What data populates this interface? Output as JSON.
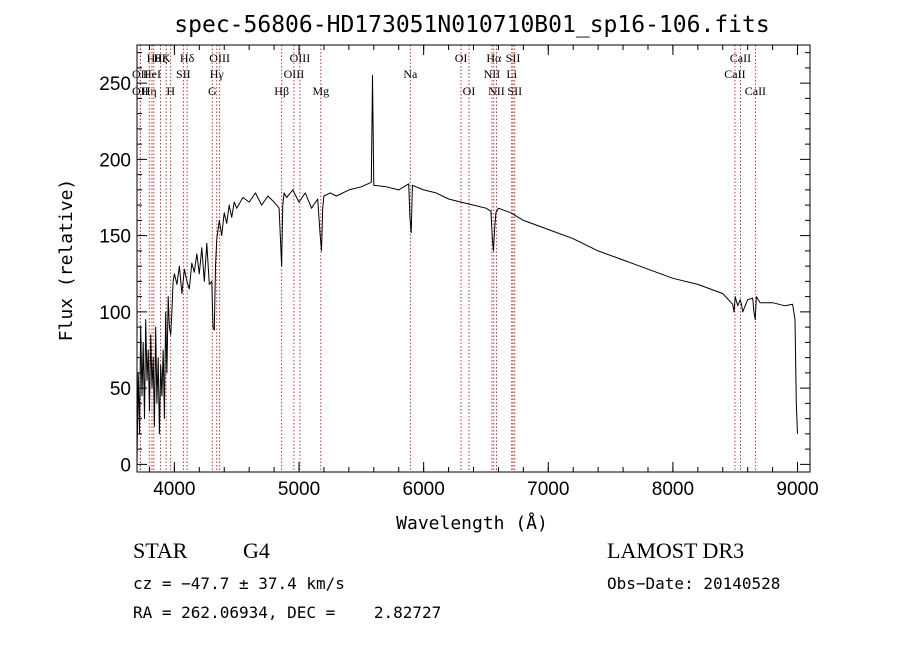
{
  "chart_data": {
    "type": "line",
    "title": "spec-56806-HD173051N010710B01_sp16-106.fits",
    "xlabel": "Wavelength (Å)",
    "ylabel": "Flux (relative)",
    "xlim": [
      3700,
      9100
    ],
    "ylim": [
      -5,
      275
    ],
    "x_ticks": [
      4000,
      5000,
      6000,
      7000,
      8000,
      9000
    ],
    "x_tick_labels": [
      "4000",
      "5000",
      "6000",
      "7000",
      "8000",
      "9000"
    ],
    "y_ticks": [
      0,
      50,
      100,
      150,
      200,
      250
    ],
    "y_tick_labels": [
      "0",
      "50",
      "100",
      "150",
      "200",
      "250"
    ],
    "series": [
      {
        "name": "spectrum",
        "x": [
          3700,
          3710,
          3720,
          3730,
          3740,
          3750,
          3760,
          3770,
          3780,
          3790,
          3800,
          3810,
          3820,
          3830,
          3840,
          3850,
          3860,
          3870,
          3880,
          3890,
          3900,
          3910,
          3920,
          3930,
          3940,
          3950,
          3960,
          3970,
          3980,
          3990,
          4000,
          4020,
          4040,
          4060,
          4080,
          4100,
          4120,
          4140,
          4160,
          4180,
          4200,
          4220,
          4240,
          4260,
          4280,
          4300,
          4310,
          4320,
          4330,
          4340,
          4360,
          4380,
          4400,
          4420,
          4440,
          4460,
          4480,
          4500,
          4550,
          4600,
          4650,
          4700,
          4750,
          4800,
          4840,
          4850,
          4860,
          4870,
          4880,
          4900,
          4950,
          5000,
          5050,
          5100,
          5150,
          5170,
          5180,
          5190,
          5200,
          5250,
          5300,
          5400,
          5500,
          5580,
          5590,
          5600,
          5700,
          5800,
          5880,
          5890,
          5900,
          5910,
          6000,
          6100,
          6200,
          6300,
          6400,
          6500,
          6540,
          6550,
          6560,
          6570,
          6580,
          6600,
          6700,
          6800,
          6900,
          7000,
          7200,
          7400,
          7600,
          7800,
          8000,
          8200,
          8400,
          8480,
          8490,
          8500,
          8520,
          8540,
          8550,
          8560,
          8600,
          8640,
          8650,
          8660,
          8670,
          8700,
          8800,
          8900,
          8960,
          8980,
          8990,
          9000
        ],
        "y": [
          0,
          60,
          20,
          90,
          45,
          80,
          30,
          95,
          55,
          75,
          35,
          85,
          50,
          70,
          25,
          90,
          40,
          70,
          20,
          65,
          45,
          75,
          30,
          100,
          60,
          110,
          90,
          85,
          100,
          120,
          125,
          118,
          130,
          112,
          128,
          120,
          115,
          132,
          126,
          138,
          125,
          142,
          120,
          145,
          118,
          120,
          90,
          88,
          130,
          148,
          160,
          150,
          165,
          158,
          170,
          162,
          172,
          168,
          175,
          172,
          178,
          170,
          176,
          172,
          168,
          150,
          130,
          170,
          178,
          175,
          180,
          172,
          178,
          168,
          174,
          150,
          140,
          168,
          176,
          178,
          176,
          180,
          182,
          185,
          255,
          183,
          182,
          180,
          184,
          162,
          152,
          183,
          180,
          178,
          174,
          172,
          170,
          168,
          166,
          150,
          140,
          155,
          165,
          168,
          165,
          160,
          157,
          154,
          148,
          140,
          134,
          128,
          122,
          118,
          112,
          105,
          100,
          110,
          104,
          108,
          105,
          100,
          108,
          109,
          100,
          95,
          110,
          106,
          106,
          104,
          105,
          95,
          40,
          20
        ]
      }
    ],
    "emission_lines": [
      {
        "wavelength": 3727,
        "label": "OII",
        "row": 2
      },
      {
        "wavelength": 3727,
        "label": "OII",
        "row": 3
      },
      {
        "wavelength": 3798,
        "label": "Hη",
        "row": 3
      },
      {
        "wavelength": 3820,
        "label": "HeI",
        "row": 2
      },
      {
        "wavelength": 3835,
        "label": "Hθ",
        "row": 1
      },
      {
        "wavelength": 3889,
        "label": "Hζ",
        "row": 1
      },
      {
        "wavelength": 3934,
        "label": "K",
        "row": 1
      },
      {
        "wavelength": 3970,
        "label": "H",
        "row": 3
      },
      {
        "wavelength": 4072,
        "label": "SII",
        "row": 2
      },
      {
        "wavelength": 4102,
        "label": "Hδ",
        "row": 1
      },
      {
        "wavelength": 4304,
        "label": "G",
        "row": 3
      },
      {
        "wavelength": 4340,
        "label": "Hγ",
        "row": 2
      },
      {
        "wavelength": 4363,
        "label": "OIII",
        "row": 1
      },
      {
        "wavelength": 4861,
        "label": "Hβ",
        "row": 3
      },
      {
        "wavelength": 4959,
        "label": "OIII",
        "row": 2
      },
      {
        "wavelength": 5007,
        "label": "OIII",
        "row": 1
      },
      {
        "wavelength": 5175,
        "label": "Mg",
        "row": 3
      },
      {
        "wavelength": 5893,
        "label": "Na",
        "row": 2
      },
      {
        "wavelength": 6300,
        "label": "OI",
        "row": 1
      },
      {
        "wavelength": 6364,
        "label": "OI",
        "row": 3
      },
      {
        "wavelength": 6548,
        "label": "NII",
        "row": 2
      },
      {
        "wavelength": 6563,
        "label": "Hα",
        "row": 1
      },
      {
        "wavelength": 6584,
        "label": "NII",
        "row": 3
      },
      {
        "wavelength": 6707,
        "label": "Li",
        "row": 2
      },
      {
        "wavelength": 6717,
        "label": "SII",
        "row": 1
      },
      {
        "wavelength": 6731,
        "label": "SII",
        "row": 3
      },
      {
        "wavelength": 8498,
        "label": "CaII",
        "row": 2
      },
      {
        "wavelength": 8542,
        "label": "CaII",
        "row": 1
      },
      {
        "wavelength": 8662,
        "label": "CaII",
        "row": 3
      }
    ]
  },
  "info": {
    "class_label": "STAR",
    "subclass": "G4",
    "survey": "LAMOST DR3",
    "redshift": "cz = −47.7 ± 37.4 km/s",
    "obs_date": "Obs−Date: 20140528",
    "coords": "RA = 262.06934, DEC =    2.82727"
  }
}
